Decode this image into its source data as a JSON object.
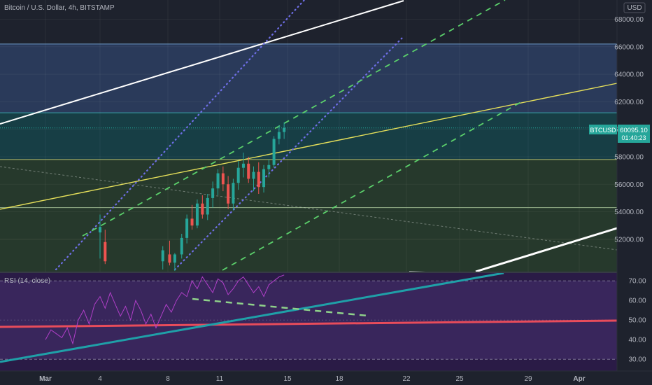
{
  "header": {
    "symbol_title": "Bitcoin / U.S. Dollar, 4h, BITSTAMP",
    "currency": "USD"
  },
  "price_badge": {
    "symbol": "BTCUSD",
    "price": "60095.10",
    "countdown": "01:40:23",
    "color": "#26a69a"
  },
  "rsi_panel": {
    "label": "RSI (14, close)",
    "upper_band": 70,
    "lower_band": 30
  },
  "colors": {
    "background": "#1e222d",
    "zone_upper": "#2a3a5a",
    "zone_mid": "#173e45",
    "zone_lower": "#26392c",
    "candle_up": "#26a69a",
    "candle_down": "#ef5350",
    "rsi_bg": "#2a1b46",
    "rsi_line": "#b03fc8",
    "yellow_line": "#e6e05a",
    "white_line": "#ffffff",
    "dotted_purple": "#6f6fe8",
    "dashed_green": "#5bd06b",
    "rsi_teal": "#1fa0a8",
    "rsi_red": "#e84c5b"
  },
  "chart_data": [
    {
      "type": "candlestick",
      "x_ticks": [
        "Mar",
        "4",
        "8",
        "11",
        "15",
        "18",
        "22",
        "25",
        "29",
        "Apr"
      ],
      "y_ticks": [
        52000,
        54000,
        56000,
        58000,
        60000,
        62000,
        64000,
        66000,
        68000
      ],
      "y_tick_labels": [
        "52000.00",
        "54000.00",
        "56000.00",
        "58000.00",
        "60000.00",
        "62000.00",
        "64000.00",
        "66000.00",
        "68000.00"
      ],
      "ylim": [
        49600,
        69400
      ],
      "zones": [
        {
          "from": 61200,
          "to": 66200,
          "color": "#2a3a5a"
        },
        {
          "from": 57800,
          "to": 61200,
          "color": "#173e45"
        },
        {
          "from": 54300,
          "to": 57800,
          "color": "#26392c"
        },
        {
          "from": 49600,
          "to": 54300,
          "color": "#26392c"
        }
      ],
      "horizontal_levels": [
        66200,
        61200,
        57800,
        54300,
        52000
      ],
      "current_price": 60095.1,
      "candles": [
        {
          "x": 3.0,
          "o": 52500,
          "h": 53800,
          "l": 50600,
          "c": 52900
        },
        {
          "x": 3.3,
          "o": 51800,
          "h": 52700,
          "l": 50200,
          "c": 50400
        },
        {
          "x": 6.7,
          "o": 50400,
          "h": 51500,
          "l": 49800,
          "c": 51200
        },
        {
          "x": 7.1,
          "o": 50900,
          "h": 51900,
          "l": 50100,
          "c": 50300
        },
        {
          "x": 7.4,
          "o": 50300,
          "h": 51000,
          "l": 49700,
          "c": 50900
        },
        {
          "x": 7.8,
          "o": 50900,
          "h": 52400,
          "l": 50600,
          "c": 52100
        },
        {
          "x": 8.1,
          "o": 52100,
          "h": 53800,
          "l": 51700,
          "c": 53500
        },
        {
          "x": 8.4,
          "o": 53500,
          "h": 54500,
          "l": 52700,
          "c": 53000
        },
        {
          "x": 8.7,
          "o": 53000,
          "h": 54900,
          "l": 52800,
          "c": 54600
        },
        {
          "x": 9.0,
          "o": 54600,
          "h": 55200,
          "l": 53500,
          "c": 53800
        },
        {
          "x": 9.3,
          "o": 53800,
          "h": 55300,
          "l": 53400,
          "c": 55000
        },
        {
          "x": 9.6,
          "o": 55000,
          "h": 56200,
          "l": 54300,
          "c": 55700
        },
        {
          "x": 9.9,
          "o": 55700,
          "h": 57100,
          "l": 55200,
          "c": 56800
        },
        {
          "x": 10.2,
          "o": 56800,
          "h": 57300,
          "l": 55500,
          "c": 56000
        },
        {
          "x": 10.5,
          "o": 56000,
          "h": 56600,
          "l": 54200,
          "c": 54600
        },
        {
          "x": 10.8,
          "o": 54600,
          "h": 56400,
          "l": 54100,
          "c": 56100
        },
        {
          "x": 11.1,
          "o": 56100,
          "h": 57700,
          "l": 55600,
          "c": 57200
        },
        {
          "x": 11.4,
          "o": 57200,
          "h": 58300,
          "l": 56500,
          "c": 57500
        },
        {
          "x": 11.7,
          "o": 57500,
          "h": 58000,
          "l": 56100,
          "c": 56400
        },
        {
          "x": 12.0,
          "o": 56400,
          "h": 57300,
          "l": 55500,
          "c": 56900
        },
        {
          "x": 12.3,
          "o": 56900,
          "h": 57600,
          "l": 55300,
          "c": 55800
        },
        {
          "x": 12.6,
          "o": 55800,
          "h": 57400,
          "l": 55400,
          "c": 57100
        },
        {
          "x": 12.9,
          "o": 57100,
          "h": 57800,
          "l": 56500,
          "c": 57400
        },
        {
          "x": 13.2,
          "o": 57400,
          "h": 59500,
          "l": 57200,
          "c": 59300
        },
        {
          "x": 13.5,
          "o": 59300,
          "h": 60300,
          "l": 58900,
          "c": 59800
        },
        {
          "x": 13.8,
          "o": 59800,
          "h": 60500,
          "l": 59300,
          "c": 60100
        }
      ]
    },
    {
      "type": "line",
      "title": "RSI (14, close)",
      "x_ticks": [
        "Mar",
        "4",
        "8",
        "11",
        "15",
        "18",
        "22",
        "25",
        "29",
        "Apr"
      ],
      "y_ticks": [
        30,
        40,
        50,
        60,
        70
      ],
      "y_tick_labels": [
        "30.00",
        "40.00",
        "50.00",
        "60.00",
        "70.00"
      ],
      "ylim": [
        24,
        74
      ],
      "band": [
        30,
        70
      ],
      "series": [
        {
          "x": [
            0.0,
            0.3,
            0.6,
            0.9,
            1.2,
            1.5,
            1.8,
            2.1,
            2.4,
            2.7,
            3.0,
            3.3,
            3.6,
            3.9,
            4.2,
            4.5,
            4.8,
            5.1,
            5.4,
            5.7,
            6.0,
            6.3,
            6.6,
            6.9,
            7.2,
            7.5,
            7.8,
            8.1,
            8.4,
            8.7,
            9.0,
            9.3,
            9.6,
            9.9,
            10.2,
            10.5,
            10.8,
            11.1,
            11.4,
            11.7,
            12.0,
            12.3,
            12.6,
            12.9,
            13.2,
            13.5,
            13.8
          ],
          "y": [
            40,
            45,
            43,
            41,
            46,
            38,
            50,
            55,
            48,
            58,
            62,
            56,
            64,
            58,
            52,
            57,
            50,
            60,
            55,
            48,
            53,
            46,
            52,
            58,
            54,
            60,
            64,
            62,
            70,
            66,
            72,
            68,
            64,
            71,
            69,
            63,
            66,
            70,
            72,
            68,
            64,
            67,
            62,
            68,
            70,
            72,
            73
          ]
        }
      ]
    }
  ]
}
